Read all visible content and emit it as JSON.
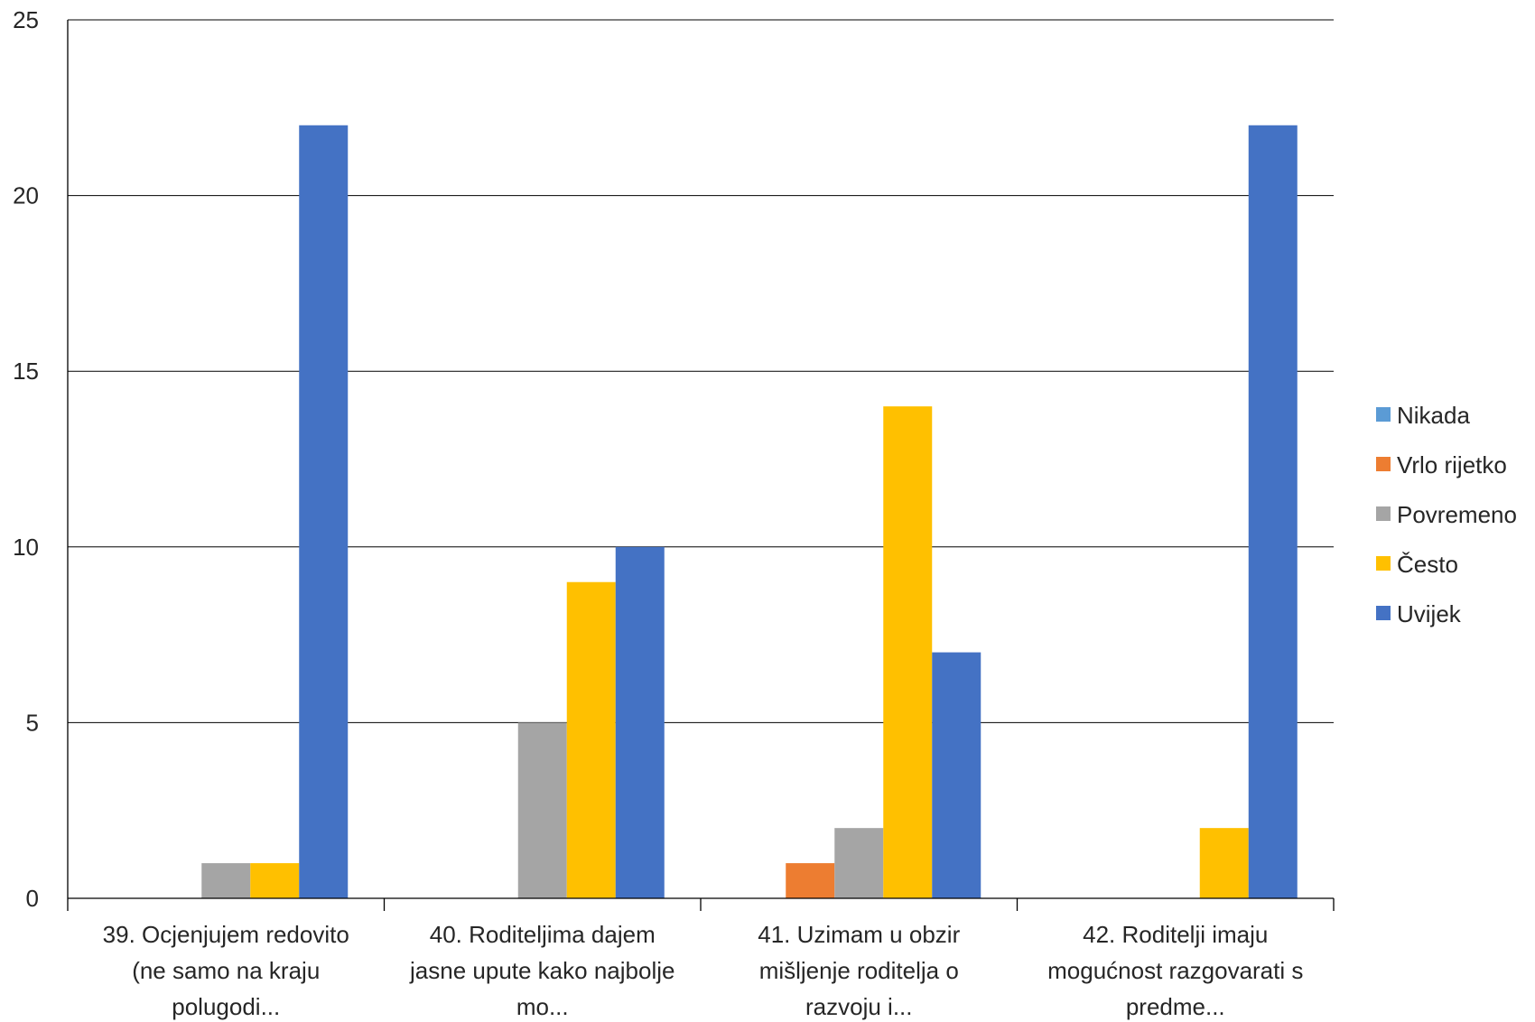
{
  "chart_data": {
    "type": "bar",
    "categories": [
      [
        "39. Ocjenjujem redovito",
        "(ne samo na kraju",
        "polugodi..."
      ],
      [
        "40. Roditeljima dajem",
        "jasne upute kako najbolje",
        "mo..."
      ],
      [
        "41. Uzimam u obzir",
        "mišljenje roditelja o",
        "razvoju i..."
      ],
      [
        "42. Roditelji imaju",
        "mogućnost razgovarati s",
        "predme..."
      ]
    ],
    "series": [
      {
        "name": "Nikada",
        "color": "#5B9BD5",
        "values": [
          0,
          0,
          0,
          0
        ]
      },
      {
        "name": "Vrlo rijetko",
        "color": "#ED7D31",
        "values": [
          0,
          0,
          1,
          0
        ]
      },
      {
        "name": "Povremeno",
        "color": "#A5A5A5",
        "values": [
          1,
          5,
          2,
          0
        ]
      },
      {
        "name": "Često",
        "color": "#FFC000",
        "values": [
          1,
          9,
          14,
          2
        ]
      },
      {
        "name": "Uvijek",
        "color": "#4472C4",
        "values": [
          22,
          10,
          7,
          22
        ]
      }
    ],
    "ylim": [
      0,
      25
    ],
    "yticks": [
      0,
      5,
      10,
      15,
      20,
      25
    ],
    "grid": true,
    "legend_position": "right",
    "title": "",
    "xlabel": "",
    "ylabel": ""
  }
}
